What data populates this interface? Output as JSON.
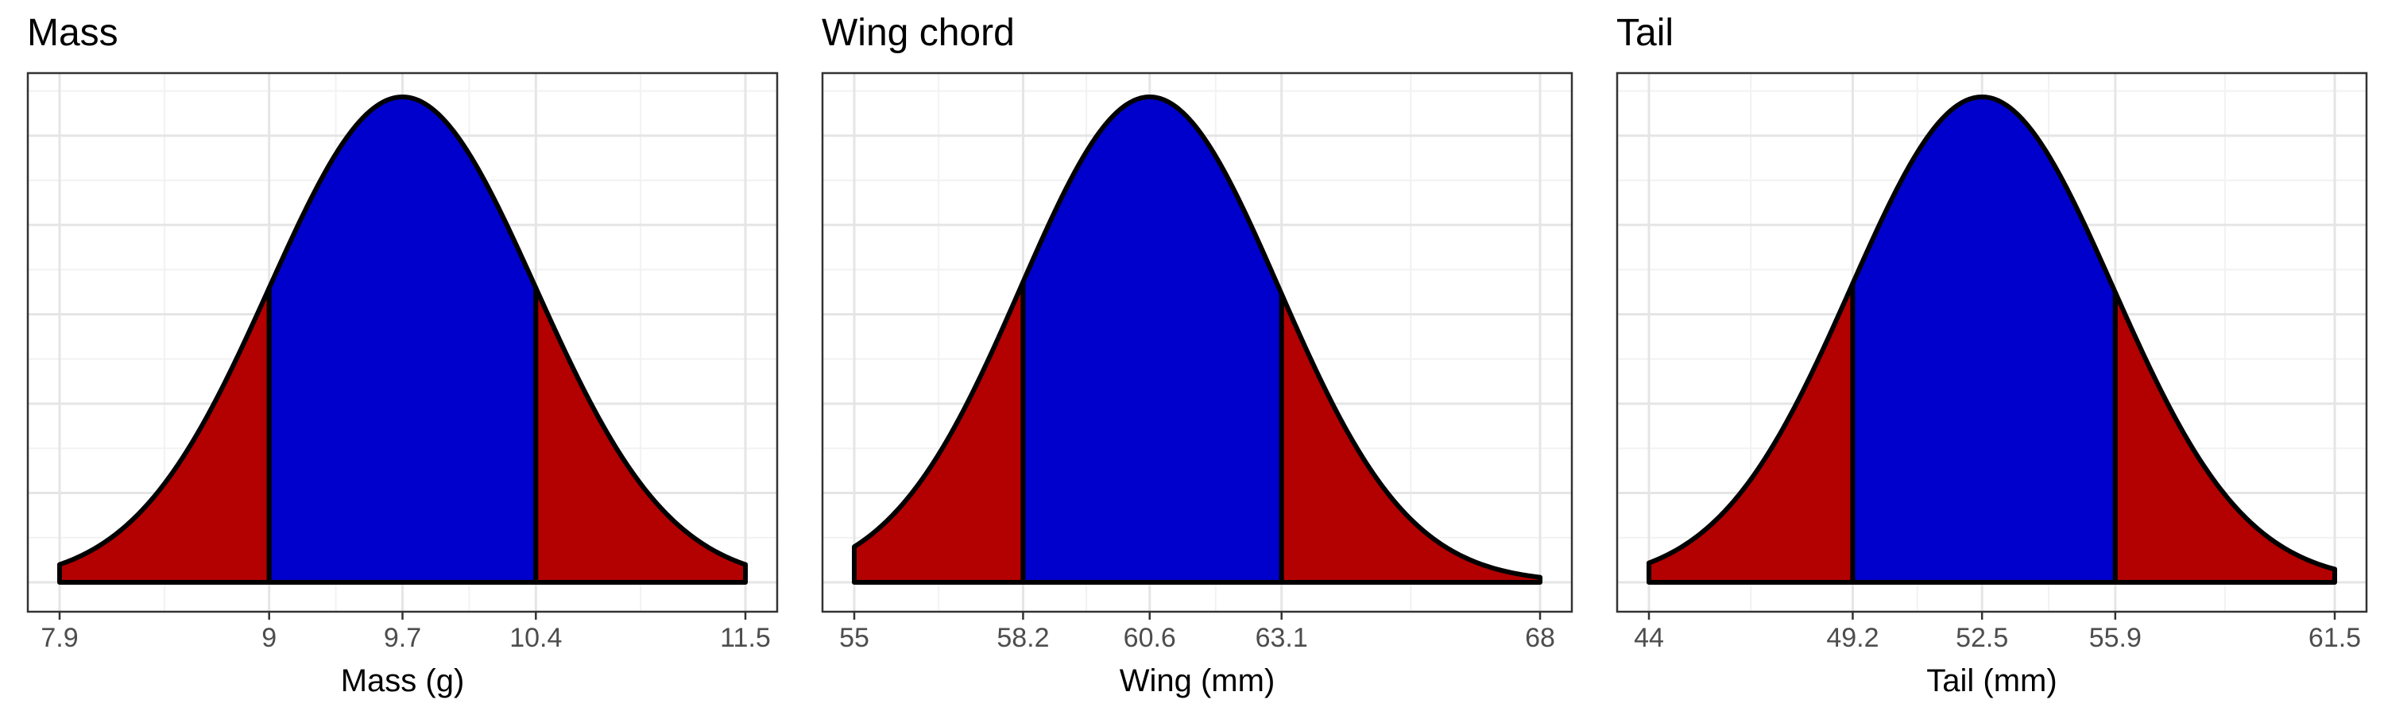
{
  "chart_data": [
    {
      "type": "area",
      "title": "Mass",
      "xlabel": "Mass (g)",
      "ylabel": "",
      "xlim": [
        7.9,
        11.5
      ],
      "x_ticks": [
        7.9,
        9,
        9.7,
        10.4,
        11.5
      ],
      "x_tick_labels": [
        "7.9",
        "9",
        "9.7",
        "10.4",
        "11.5"
      ],
      "mean": 9.7,
      "sd": 0.7,
      "inner_range": [
        9,
        10.4
      ],
      "grid": true,
      "colors": {
        "tails": "#b30000",
        "center": "#0000cc",
        "outline": "#000000"
      }
    },
    {
      "type": "area",
      "title": "Wing chord",
      "xlabel": "Wing (mm)",
      "ylabel": "",
      "xlim": [
        55,
        68
      ],
      "x_ticks": [
        55,
        58.2,
        60.6,
        63.1,
        68
      ],
      "x_tick_labels": [
        "55",
        "58.2",
        "60.6",
        "63.1",
        "68"
      ],
      "mean": 60.6,
      "sd": 2.45,
      "inner_range": [
        58.2,
        63.1
      ],
      "grid": true,
      "colors": {
        "tails": "#b30000",
        "center": "#0000cc",
        "outline": "#000000"
      }
    },
    {
      "type": "area",
      "title": "Tail",
      "xlabel": "Tail (mm)",
      "ylabel": "",
      "xlim": [
        44,
        61.5
      ],
      "x_ticks": [
        44,
        49.2,
        52.5,
        55.9,
        61.5
      ],
      "x_tick_labels": [
        "44",
        "49.2",
        "52.5",
        "55.9",
        "61.5"
      ],
      "mean": 52.5,
      "sd": 3.35,
      "inner_range": [
        49.2,
        55.9
      ],
      "grid": true,
      "colors": {
        "tails": "#b30000",
        "center": "#0000cc",
        "outline": "#000000"
      }
    }
  ]
}
